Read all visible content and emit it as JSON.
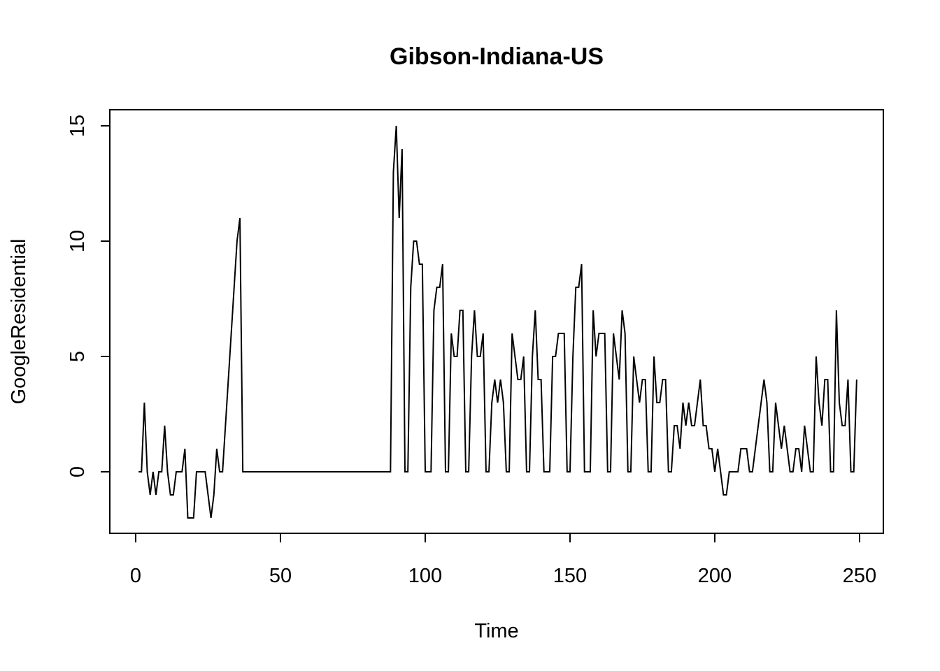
{
  "chart_data": {
    "type": "line",
    "title": "Gibson-Indiana-US",
    "xlabel": "Time",
    "ylabel": "GoogleResidential",
    "xlim": [
      1,
      248
    ],
    "ylim": [
      -2,
      15
    ],
    "xticks": [
      0,
      50,
      100,
      150,
      200,
      250
    ],
    "yticks": [
      0,
      5,
      10,
      15
    ],
    "grid": false,
    "series_color": "#000000",
    "x_start": 1,
    "values": [
      0,
      0,
      3,
      0,
      -1,
      0,
      -1,
      0,
      0,
      2,
      0,
      -1,
      -1,
      0,
      0,
      0,
      1,
      -2,
      -2,
      -2,
      0,
      0,
      0,
      0,
      -1,
      -2,
      -1,
      1,
      0,
      0,
      2,
      4,
      6,
      8,
      10,
      11,
      0,
      0,
      0,
      0,
      0,
      0,
      0,
      0,
      0,
      0,
      0,
      0,
      0,
      0,
      0,
      0,
      0,
      0,
      0,
      0,
      0,
      0,
      0,
      0,
      0,
      0,
      0,
      0,
      0,
      0,
      0,
      0,
      0,
      0,
      0,
      0,
      0,
      0,
      0,
      0,
      0,
      0,
      0,
      0,
      0,
      0,
      0,
      0,
      0,
      0,
      0,
      0,
      13,
      15,
      11,
      14,
      0,
      0,
      8,
      10,
      10,
      9,
      9,
      0,
      0,
      0,
      7,
      8,
      8,
      9,
      0,
      0,
      6,
      5,
      5,
      7,
      7,
      0,
      0,
      5,
      7,
      5,
      5,
      6,
      0,
      0,
      3,
      4,
      3,
      4,
      3,
      0,
      0,
      6,
      5,
      4,
      4,
      5,
      0,
      0,
      5,
      7,
      4,
      4,
      0,
      0,
      0,
      5,
      5,
      6,
      6,
      6,
      0,
      0,
      5,
      8,
      8,
      9,
      0,
      0,
      0,
      7,
      5,
      6,
      6,
      6,
      0,
      0,
      6,
      5,
      4,
      7,
      6,
      0,
      0,
      5,
      4,
      3,
      4,
      4,
      0,
      0,
      5,
      3,
      3,
      4,
      4,
      0,
      0,
      2,
      2,
      1,
      3,
      2,
      3,
      2,
      2,
      3,
      4,
      2,
      2,
      1,
      1,
      0,
      1,
      0,
      -1,
      -1,
      0,
      0,
      0,
      0,
      1,
      1,
      1,
      0,
      0,
      1,
      2,
      3,
      4,
      3,
      0,
      0,
      3,
      2,
      1,
      2,
      1,
      0,
      0,
      1,
      1,
      0,
      2,
      1,
      0,
      0,
      5,
      3,
      2,
      4,
      4,
      0,
      0,
      7,
      3,
      2,
      2,
      4,
      0,
      0,
      4
    ]
  }
}
